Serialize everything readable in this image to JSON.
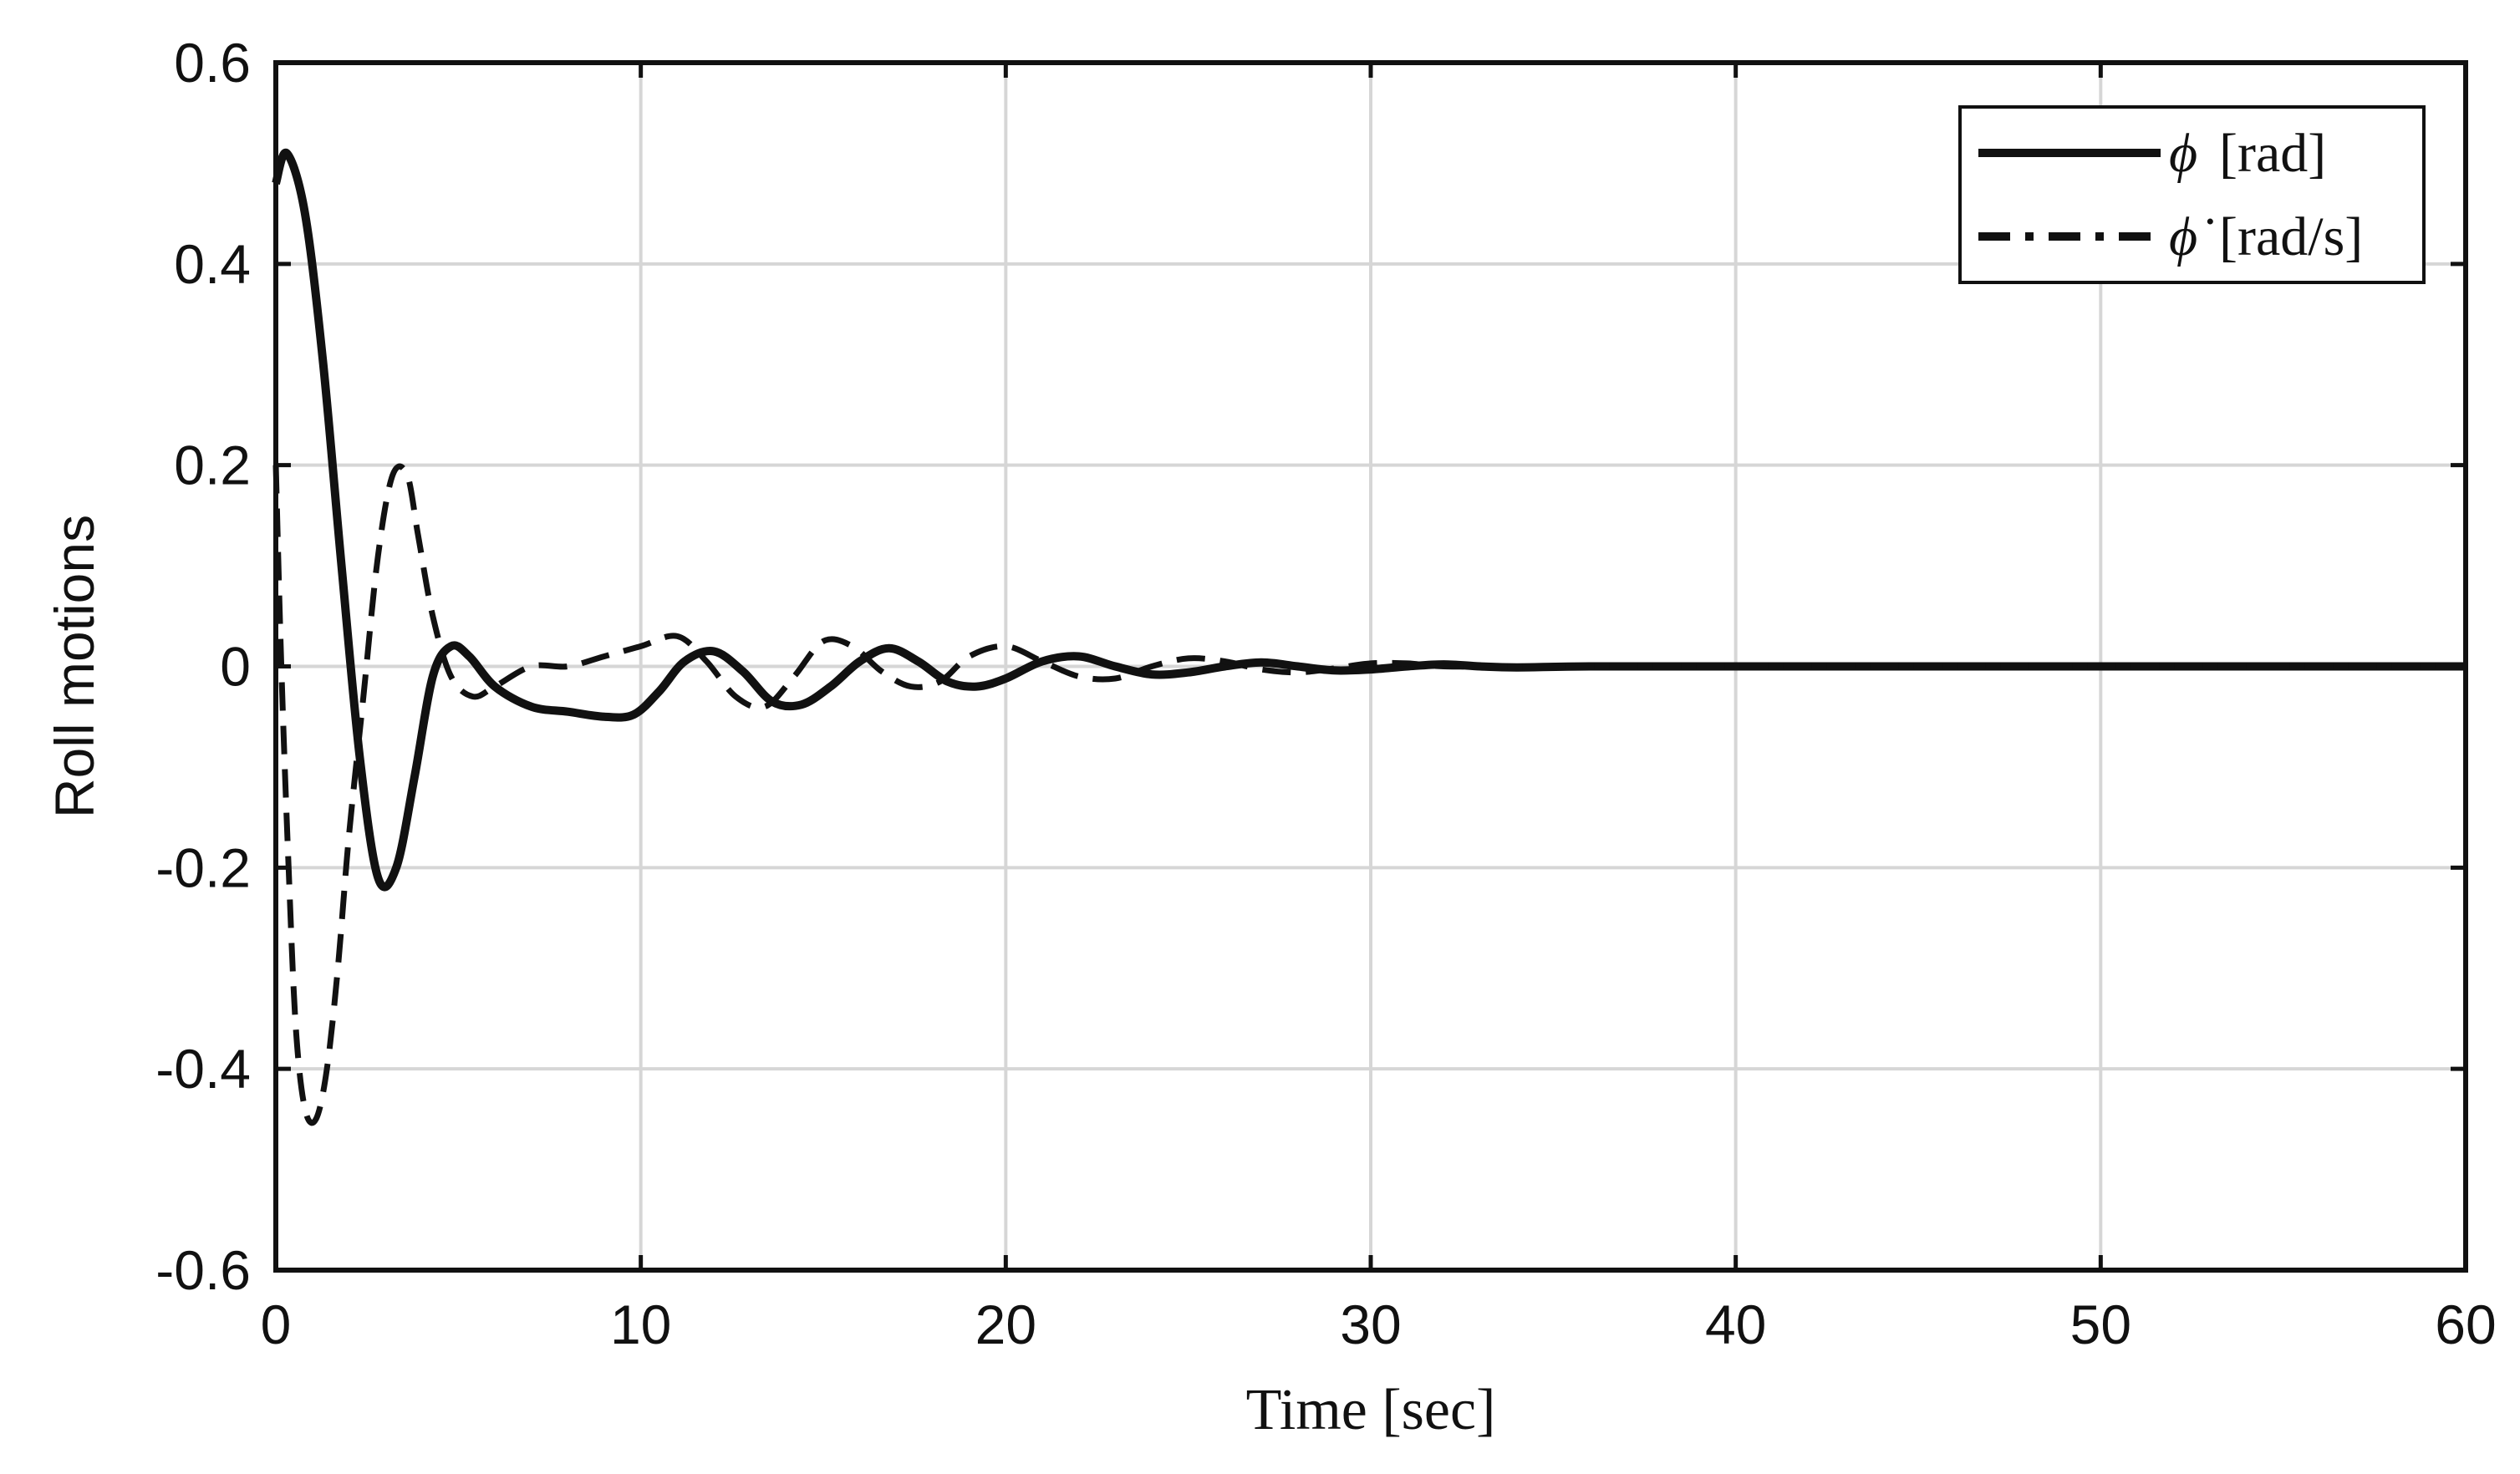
{
  "chart_data": {
    "type": "line",
    "title": "",
    "xlabel": "Time [sec]",
    "ylabel": "Roll motions",
    "xlim": [
      0,
      60
    ],
    "ylim": [
      -0.6,
      0.6
    ],
    "xticks": [
      0,
      10,
      20,
      30,
      40,
      50,
      60
    ],
    "yticks": [
      -0.6,
      -0.4,
      -0.2,
      0,
      0.2,
      0.4,
      0.6
    ],
    "xtick_labels": [
      "0",
      "10",
      "20",
      "30",
      "40",
      "50",
      "60"
    ],
    "ytick_labels": [
      "-0.6",
      "-0.4",
      "-0.2",
      "0",
      "0.2",
      "0.4",
      "0.6"
    ],
    "grid": true,
    "legend_position": "top-right",
    "series": [
      {
        "name": "ϕ [rad]",
        "legend_symbol": "ϕ",
        "legend_unit": "[rad]",
        "style": "solid",
        "color": "#111111",
        "x": [
          0,
          0.3,
          0.8,
          1.3,
          1.8,
          2.3,
          2.8,
          3.3,
          3.8,
          4.3,
          4.8,
          5.3,
          6.0,
          7.0,
          8.0,
          9.0,
          9.8,
          10.5,
          11.2,
          12.0,
          12.8,
          13.6,
          14.4,
          15.2,
          16.0,
          16.8,
          17.6,
          18.4,
          19.2,
          20.0,
          21.0,
          22.0,
          23.0,
          24.0,
          25.0,
          26.0,
          27.0,
          28.0,
          29.0,
          30.0,
          31.0,
          32.0,
          33.0,
          34.0,
          36.0,
          40.0,
          45.0,
          50.0,
          55.0,
          60.0
        ],
        "y": [
          0.48,
          0.51,
          0.45,
          0.3,
          0.1,
          -0.09,
          -0.21,
          -0.2,
          -0.11,
          -0.01,
          0.02,
          0.01,
          -0.02,
          -0.04,
          -0.045,
          -0.05,
          -0.048,
          -0.025,
          0.005,
          0.015,
          -0.005,
          -0.035,
          -0.038,
          -0.02,
          0.005,
          0.018,
          0.005,
          -0.015,
          -0.02,
          -0.012,
          0.005,
          0.01,
          0.0,
          -0.008,
          -0.006,
          0.0,
          0.004,
          0.0,
          -0.004,
          -0.003,
          0.0,
          0.002,
          0.0,
          -0.001,
          0.0,
          0.0,
          0.0,
          0.0,
          0.0,
          0.0
        ]
      },
      {
        "name": "ϕ̇ [rad/s]",
        "legend_symbol": "ϕ̇",
        "legend_unit": "[rad/s]",
        "style": "dashed",
        "color": "#111111",
        "x": [
          0,
          0.15,
          0.35,
          0.55,
          0.8,
          1.1,
          1.4,
          1.7,
          2.0,
          2.4,
          2.8,
          3.2,
          3.6,
          3.9,
          4.3,
          4.8,
          5.4,
          6.0,
          7.0,
          8.0,
          9.0,
          10.0,
          11.0,
          11.8,
          12.6,
          13.4,
          14.2,
          15.0,
          15.8,
          16.6,
          17.4,
          18.2,
          19.0,
          20.0,
          21.0,
          22.0,
          23.0,
          24.0,
          25.0,
          26.0,
          27.0,
          28.0,
          29.0,
          30.0,
          31.0,
          32.0,
          34.0,
          36.0,
          40.0,
          50.0,
          60.0
        ],
        "y": [
          0.2,
          0.0,
          -0.2,
          -0.36,
          -0.44,
          -0.45,
          -0.4,
          -0.3,
          -0.17,
          -0.03,
          0.11,
          0.19,
          0.19,
          0.13,
          0.05,
          -0.01,
          -0.03,
          -0.02,
          0.0,
          0.0,
          0.01,
          0.02,
          0.03,
          0.005,
          -0.03,
          -0.04,
          -0.01,
          0.025,
          0.02,
          -0.005,
          -0.02,
          -0.015,
          0.01,
          0.02,
          0.005,
          -0.01,
          -0.012,
          0.0,
          0.008,
          0.005,
          -0.003,
          -0.006,
          -0.002,
          0.003,
          0.003,
          0.0,
          0.0,
          0.0,
          0.0,
          0.0,
          0.0
        ]
      }
    ]
  }
}
